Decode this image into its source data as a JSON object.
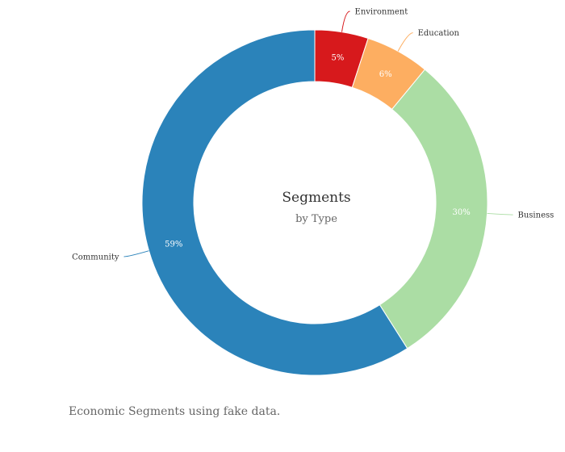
{
  "chart_data": {
    "type": "pie",
    "variant": "donut",
    "title": "Segments",
    "subtitle": "by Type",
    "slices": [
      {
        "label": "Environment",
        "value": 5,
        "display": "5%",
        "color": "#d7191c",
        "label_color": "#ffffff"
      },
      {
        "label": "Education",
        "value": 6,
        "display": "6%",
        "color": "#fdae61",
        "label_color": "#ffffff"
      },
      {
        "label": "Business",
        "value": 30,
        "display": "30%",
        "color": "#abdda4",
        "label_color": "#ffffff"
      },
      {
        "label": "Community",
        "value": 59,
        "display": "59%",
        "color": "#2b83ba",
        "label_color": "#ffffff"
      }
    ]
  },
  "caption": "Economic Segments using fake data."
}
